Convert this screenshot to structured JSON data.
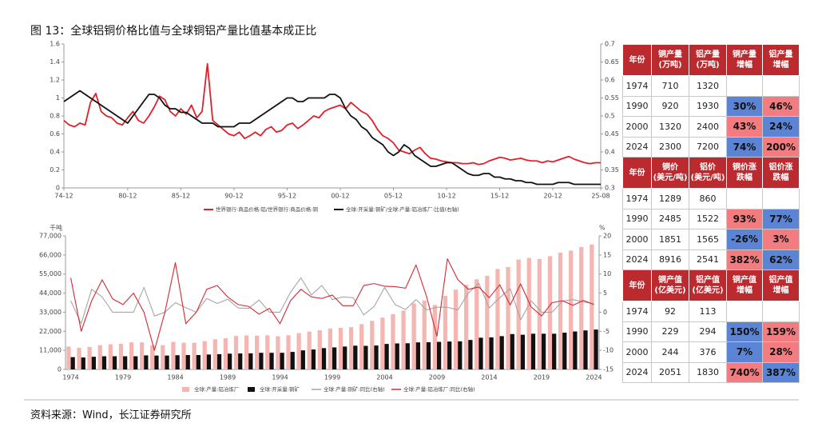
{
  "title": "图 13：全球铝铜价格比值与全球铜铝产量比值基本成正比",
  "source": "资料来源：Wind，长江证券研究所",
  "chart_data": [
    {
      "type": "line",
      "categories": [
        "74-12",
        null,
        null,
        null,
        null,
        null,
        null,
        null,
        null,
        null,
        null,
        null,
        "80-12",
        null,
        null,
        null,
        null,
        null,
        null,
        null,
        null,
        null,
        "85-12",
        null,
        null,
        null,
        null,
        null,
        null,
        null,
        null,
        null,
        "90-12",
        null,
        null,
        null,
        null,
        null,
        null,
        null,
        null,
        null,
        "95-12",
        null,
        null,
        null,
        null,
        null,
        null,
        null,
        null,
        null,
        "00-12",
        null,
        null,
        null,
        null,
        null,
        null,
        null,
        null,
        null,
        "05-12",
        null,
        null,
        null,
        null,
        null,
        null,
        null,
        null,
        null,
        "10-12",
        null,
        null,
        null,
        null,
        null,
        null,
        null,
        null,
        null,
        "15-12",
        null,
        null,
        null,
        null,
        null,
        null,
        null,
        null,
        null,
        "20-12",
        null,
        null,
        null,
        null,
        null,
        null,
        null,
        null,
        "25-08"
      ],
      "series": [
        {
          "name": "世界银行:商品价格:铝/世界银行:商品价格:铜",
          "color": "#e0202a",
          "values": [
            0.75,
            0.7,
            0.68,
            0.72,
            0.7,
            0.95,
            1.05,
            0.85,
            0.8,
            0.78,
            0.72,
            0.7,
            0.78,
            0.85,
            0.75,
            0.72,
            0.8,
            0.9,
            1.02,
            0.98,
            0.85,
            0.8,
            0.88,
            0.82,
            0.92,
            0.78,
            0.85,
            1.38,
            0.75,
            0.7,
            0.65,
            0.6,
            0.58,
            0.62,
            0.55,
            0.58,
            0.62,
            0.58,
            0.65,
            0.68,
            0.62,
            0.64,
            0.7,
            0.72,
            0.66,
            0.7,
            0.75,
            0.8,
            0.78,
            0.85,
            0.88,
            0.9,
            0.92,
            0.88,
            0.95,
            0.9,
            0.85,
            0.82,
            0.75,
            0.65,
            0.58,
            0.55,
            0.5,
            0.42,
            0.4,
            0.38,
            0.42,
            0.45,
            0.38,
            0.33,
            0.32,
            0.3,
            0.29,
            0.28,
            0.28,
            0.27,
            0.27,
            0.28,
            0.26,
            0.27,
            0.3,
            0.32,
            0.34,
            0.33,
            0.31,
            0.32,
            0.33,
            0.31,
            0.3,
            0.3,
            0.28,
            0.3,
            0.29,
            0.31,
            0.33,
            0.35,
            0.32,
            0.3,
            0.28,
            0.27,
            0.28,
            0.28
          ]
        },
        {
          "name": "全球:开采量:铜矿/全球:产量:铝冶炼厂:比值(右轴)",
          "color": "#111111",
          "axis": "y2",
          "values": [
            0.54,
            0.55,
            0.56,
            0.57,
            0.56,
            0.55,
            0.54,
            0.53,
            0.52,
            0.51,
            0.5,
            0.49,
            0.48,
            0.5,
            0.52,
            0.54,
            0.56,
            0.56,
            0.55,
            0.53,
            0.52,
            0.52,
            0.51,
            0.51,
            0.5,
            0.49,
            0.48,
            0.48,
            0.48,
            0.47,
            0.47,
            0.47,
            0.47,
            0.48,
            0.48,
            0.48,
            0.49,
            0.5,
            0.51,
            0.52,
            0.53,
            0.54,
            0.55,
            0.55,
            0.54,
            0.54,
            0.55,
            0.55,
            0.55,
            0.55,
            0.56,
            0.56,
            0.55,
            0.52,
            0.5,
            0.49,
            0.47,
            0.46,
            0.44,
            0.43,
            0.42,
            0.4,
            0.39,
            0.4,
            0.42,
            0.41,
            0.39,
            0.38,
            0.37,
            0.36,
            0.36,
            0.365,
            0.37,
            0.37,
            0.36,
            0.35,
            0.34,
            0.335,
            0.335,
            0.34,
            0.34,
            0.33,
            0.33,
            0.325,
            0.325,
            0.32,
            0.32,
            0.315,
            0.315,
            0.31,
            0.31,
            0.31,
            0.31,
            0.315,
            0.315,
            0.315,
            0.31,
            0.31,
            0.31,
            0.31,
            0.31,
            0.31
          ]
        }
      ],
      "ylim": [
        0,
        1.6
      ],
      "yticks": [
        0,
        0.2,
        0.4,
        0.6,
        0.8,
        1,
        1.2,
        1.4,
        1.6
      ],
      "y2lim": [
        0.3,
        0.7
      ],
      "y2ticks": [
        0.3,
        0.35,
        0.4,
        0.45,
        0.5,
        0.55,
        0.6,
        0.65,
        0.7
      ]
    },
    {
      "type": "combo",
      "y_unit": "千吨",
      "y2_unit": "%",
      "categories": [
        "1974",
        null,
        null,
        null,
        null,
        "1979",
        null,
        null,
        null,
        null,
        "1984",
        null,
        null,
        null,
        null,
        "1989",
        null,
        null,
        null,
        null,
        "1994",
        null,
        null,
        null,
        null,
        "1999",
        null,
        null,
        null,
        null,
        "2004",
        null,
        null,
        null,
        null,
        "2009",
        null,
        null,
        null,
        null,
        "2014",
        null,
        null,
        null,
        null,
        "2019",
        null,
        null,
        null,
        null,
        "2024"
      ],
      "series": [
        {
          "name": "全球:产量:铝冶炼厂",
          "type": "bar",
          "color": "#f5b5b0",
          "values": [
            13200,
            12500,
            12900,
            14000,
            14500,
            14800,
            15600,
            15600,
            14000,
            14000,
            15900,
            15400,
            15400,
            16300,
            17400,
            18000,
            19300,
            19600,
            19500,
            19700,
            19100,
            19700,
            20900,
            21800,
            22600,
            23600,
            24000,
            24400,
            26100,
            28000,
            29900,
            31900,
            33900,
            38100,
            39700,
            37200,
            42400,
            46000,
            48800,
            52000,
            54000,
            57900,
            59000,
            63400,
            64300,
            63700,
            65300,
            67300,
            68500,
            70600,
            72000
          ]
        },
        {
          "name": "全球:开采量:铜矿",
          "type": "bar",
          "color": "#111111",
          "values": [
            7100,
            6900,
            7300,
            7600,
            7600,
            7600,
            7600,
            8100,
            8000,
            8000,
            8200,
            8300,
            8300,
            8600,
            8800,
            9100,
            9200,
            9300,
            9600,
            9600,
            9600,
            10100,
            11000,
            11500,
            12300,
            12700,
            13200,
            13700,
            13600,
            13800,
            14700,
            15000,
            15100,
            15600,
            15700,
            15900,
            16100,
            16200,
            17000,
            18300,
            18500,
            19200,
            20400,
            20000,
            20600,
            20600,
            20600,
            21200,
            21900,
            22500,
            23000
          ]
        },
        {
          "name": "全球:产量:铜矿:同比(右轴)",
          "type": "line",
          "axis": "y2",
          "color": "#a6a6a6",
          "values": [
            3,
            -3,
            6,
            4,
            0,
            0,
            0,
            6.5,
            -1,
            0,
            2.5,
            1.2,
            0,
            3.6,
            2.3,
            3.4,
            1.1,
            1,
            3.2,
            0,
            0,
            5.2,
            9,
            4.5,
            7,
            3.3,
            4,
            3.8,
            -0.7,
            1.5,
            6.5,
            2,
            0.7,
            3.3,
            0.6,
            1.3,
            1.3,
            0.6,
            5,
            7.6,
            1.1,
            3.8,
            6.2,
            -2,
            3,
            0,
            0,
            2.9,
            3.3,
            2.7,
            2.2
          ]
        },
        {
          "name": "全球:产量:铝冶炼厂:同比(右轴)",
          "type": "line",
          "axis": "y2",
          "color": "#d42a35",
          "values": [
            9,
            -5,
            3,
            8.5,
            3.5,
            2,
            5,
            0,
            -10,
            0,
            13,
            -3,
            0,
            6,
            7,
            4,
            2,
            1.5,
            -0.5,
            1,
            -3,
            3,
            6,
            4,
            3.6,
            4.5,
            1.7,
            1.7,
            7,
            7.5,
            6.8,
            6.7,
            6.3,
            12.4,
            4.2,
            -6.3,
            14,
            8.5,
            6,
            6.6,
            3.8,
            7.2,
            1.9,
            7.4,
            1.4,
            -1,
            2.5,
            3,
            1.8,
            3.1,
            2
          ]
        }
      ],
      "ylim": [
        0,
        77000
      ],
      "yticks": [
        0,
        {
          "value": 11000,
          "label": "11,000"
        },
        {
          "value": 22000,
          "label": "22,000"
        },
        {
          "value": 33000,
          "label": "33,000"
        },
        {
          "value": 44000,
          "label": "44,000"
        },
        {
          "value": 55000,
          "label": "55,000"
        },
        {
          "value": 66000,
          "label": "66,000"
        },
        {
          "value": 77000,
          "label": "77,000"
        }
      ],
      "y2lim": [
        -15,
        20
      ],
      "y2ticks": [
        -15,
        -10,
        -5,
        0,
        5,
        10,
        15,
        20
      ]
    }
  ],
  "table": {
    "blocks": [
      {
        "header": [
          "年份",
          "铜产量\n(万吨)",
          "铝产量\n(万吨)",
          "铜产量\n增幅",
          "铝产量\n增幅"
        ],
        "rows": [
          [
            "1974",
            "710",
            "1320"
          ],
          [
            "1990",
            "920",
            "1930",
            "30%",
            "46%"
          ],
          [
            "2000",
            "1320",
            "2400",
            "43%",
            "24%"
          ],
          [
            "2024",
            "2300",
            "7200",
            "74%",
            "200%"
          ]
        ],
        "fills": [
          null,
          [
            "#5b84d4",
            "#f27c7f"
          ],
          [
            "#f27c7f",
            "#5b84d4"
          ],
          [
            "#5b84d4",
            "#f27c7f"
          ]
        ]
      },
      {
        "header": [
          "年份",
          "铜价\n(美元/吨)",
          "铝价\n(美元/吨)",
          "铜价涨\n跌幅",
          "铝价涨\n跌幅"
        ],
        "rows": [
          [
            "1974",
            "1289",
            "860"
          ],
          [
            "1990",
            "2485",
            "1522",
            "93%",
            "77%"
          ],
          [
            "2000",
            "1851",
            "1565",
            "-26%",
            "3%"
          ],
          [
            "2024",
            "8916",
            "2541",
            "382%",
            "62%"
          ]
        ],
        "fills": [
          null,
          [
            "#f27c7f",
            "#5b84d4"
          ],
          [
            "#5b84d4",
            "#f27c7f"
          ],
          [
            "#f27c7f",
            "#5b84d4"
          ]
        ]
      },
      {
        "header": [
          "年份",
          "铜产值\n(亿美元)",
          "铝产值\n(亿美元)",
          "铜产值\n增幅",
          "铝产值\n增幅"
        ],
        "rows": [
          [
            "1974",
            "92",
            "113"
          ],
          [
            "1990",
            "229",
            "294",
            "150%",
            "159%"
          ],
          [
            "2000",
            "244",
            "376",
            "7%",
            "28%"
          ],
          [
            "2024",
            "2051",
            "1830",
            "740%",
            "387%"
          ]
        ],
        "fills": [
          null,
          [
            "#5b84d4",
            "#f27c7f"
          ],
          [
            "#5b84d4",
            "#f27c7f"
          ],
          [
            "#f27c7f",
            "#5b84d4"
          ]
        ]
      }
    ]
  }
}
